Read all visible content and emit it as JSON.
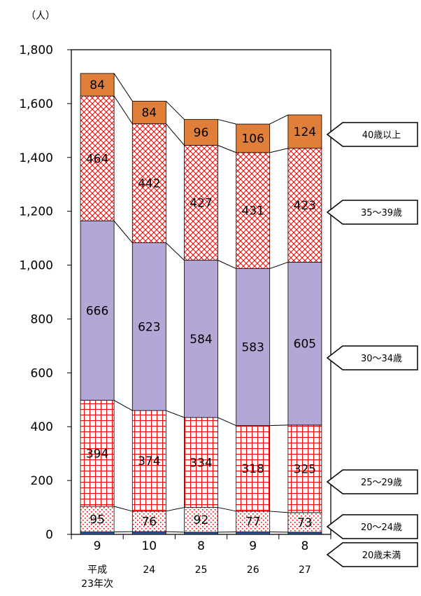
{
  "chart_data": {
    "type": "bar",
    "stacked": true,
    "unit_label": "（人）",
    "ylim": [
      0,
      1800
    ],
    "yticks": [
      0,
      200,
      400,
      600,
      800,
      1000,
      1200,
      1400,
      1600,
      1800
    ],
    "ytick_labels": [
      "0",
      "200",
      "400",
      "600",
      "800",
      "1,000",
      "1,200",
      "1,400",
      "1,600",
      "1,800"
    ],
    "categories": [
      "平成23年次",
      "24",
      "25",
      "26",
      "27"
    ],
    "category_lines": [
      [
        "平成",
        "23年次"
      ],
      [
        "24"
      ],
      [
        "25"
      ],
      [
        "26"
      ],
      [
        "27"
      ]
    ],
    "series": [
      {
        "name": "20歳未満",
        "values": [
          9,
          10,
          8,
          9,
          8
        ],
        "color": "#2e5597"
      },
      {
        "name": "20～24歳",
        "values": [
          95,
          76,
          92,
          77,
          73
        ],
        "color": "#ff0000"
      },
      {
        "name": "25～29歳",
        "values": [
          394,
          374,
          334,
          318,
          325
        ],
        "color": "#ff0000"
      },
      {
        "name": "30～34歳",
        "values": [
          666,
          623,
          584,
          583,
          605
        ],
        "color": "#b4a7d6"
      },
      {
        "name": "35～39歳",
        "values": [
          464,
          442,
          427,
          431,
          423
        ],
        "color": "#ff0000"
      },
      {
        "name": "40歳以上",
        "values": [
          84,
          84,
          96,
          106,
          124
        ],
        "color": "#e07f3a"
      }
    ]
  }
}
